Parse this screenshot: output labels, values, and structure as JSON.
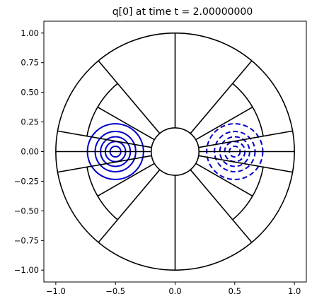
{
  "chart_data": {
    "type": "contour",
    "title": "q[0] at time t =     2.00000000",
    "xlabel": "",
    "ylabel": "",
    "xlim": [
      -1.1,
      1.1
    ],
    "ylim": [
      -1.1,
      1.1
    ],
    "xticks": [
      -1.0,
      -0.5,
      0.0,
      0.5,
      1.0
    ],
    "yticks": [
      -1.0,
      -0.75,
      -0.5,
      -0.25,
      0.0,
      0.25,
      0.5,
      0.75,
      1.0
    ],
    "xtick_labels": [
      "−1.0",
      "−0.5",
      "0.0",
      "0.5",
      "1.0"
    ],
    "ytick_labels": [
      "−1.00",
      "−0.75",
      "−0.50",
      "−0.25",
      "0.00",
      "0.25",
      "0.50",
      "0.75",
      "1.00"
    ],
    "grid": false,
    "colors": {
      "contour": "#0000cc",
      "mesh": "#000000"
    },
    "domain": {
      "outer_radius": 1.0,
      "inner_radius": 0.2
    },
    "mesh": {
      "full_spokes_deg": [
        10,
        50,
        90,
        130,
        170,
        190,
        230,
        270,
        310,
        350
      ],
      "inner_arcs": [
        {
          "radius": 0.75,
          "from_deg": 10,
          "to_deg": 50
        },
        {
          "radius": 0.75,
          "from_deg": 310,
          "to_deg": 350
        },
        {
          "radius": 0.75,
          "from_deg": 130,
          "to_deg": 170
        },
        {
          "radius": 0.75,
          "from_deg": 190,
          "to_deg": 230
        }
      ],
      "short_spokes": [
        {
          "deg": 30,
          "r_from": 0.2,
          "r_to": 0.75
        },
        {
          "deg": 330,
          "r_from": 0.2,
          "r_to": 0.75
        },
        {
          "deg": 150,
          "r_from": 0.2,
          "r_to": 0.75
        },
        {
          "deg": 210,
          "r_from": 0.2,
          "r_to": 0.75
        },
        {
          "deg": 0,
          "r_from": 0.2,
          "r_to": 1.0
        },
        {
          "deg": 180,
          "r_from": 0.2,
          "r_to": 1.0
        }
      ]
    },
    "series": [
      {
        "center": [
          -0.5,
          0.0
        ],
        "style": "solid",
        "radii": [
          0.045,
          0.085,
          0.125,
          0.17,
          0.235
        ]
      },
      {
        "center": [
          0.5,
          0.0
        ],
        "style": "dashed",
        "radii": [
          0.045,
          0.085,
          0.125,
          0.17,
          0.235
        ]
      }
    ]
  }
}
